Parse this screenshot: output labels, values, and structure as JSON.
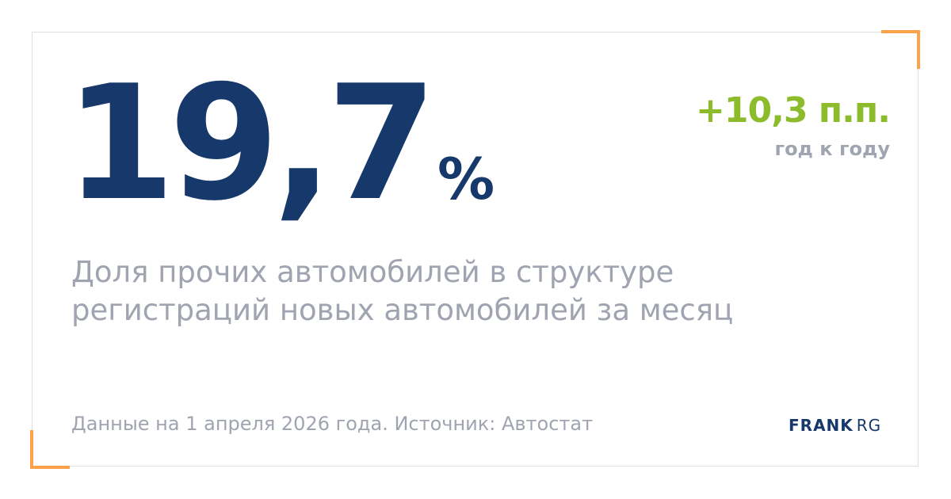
{
  "metric": {
    "value": "19,7",
    "unit": "%"
  },
  "change": {
    "value": "+10,3 п.п.",
    "label": "год к году"
  },
  "description": "Доля прочих автомобилей в структуре регистраций новых автомобилей за месяц",
  "source": "Данные на 1 апреля 2026 года. Источник: Автостат",
  "logo": {
    "brand": "FRANK",
    "suffix": "RG"
  },
  "colors": {
    "primary": "#17386a",
    "positive": "#8cbc2c",
    "accent": "#fba24a",
    "muted": "#a0a4b1"
  }
}
